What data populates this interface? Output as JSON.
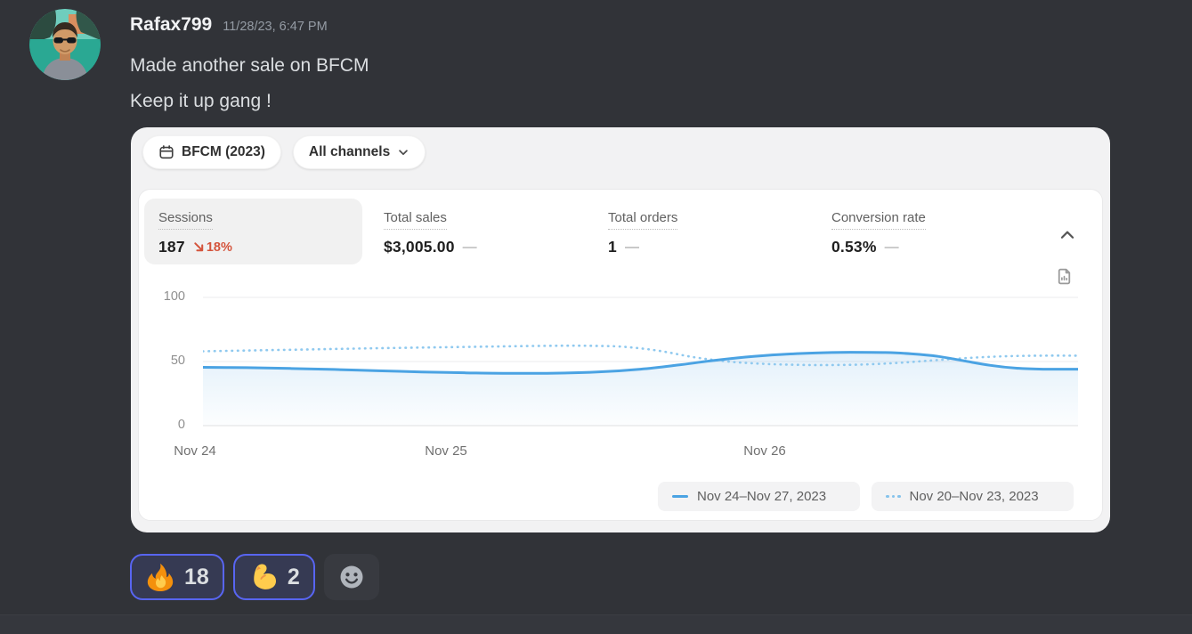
{
  "message": {
    "username": "Rafax799",
    "timestamp": "11/28/23, 6:47 PM",
    "lines": [
      "Made another sale on BFCM",
      "Keep it up gang !"
    ]
  },
  "embed": {
    "date_range_label": "BFCM (2023)",
    "channels_label": "All channels",
    "metrics": [
      {
        "label": "Sessions",
        "value": "187",
        "delta": "18%",
        "delta_direction": "down",
        "selected": true
      },
      {
        "label": "Total sales",
        "value": "$3,005.00",
        "comparison_dash": "—"
      },
      {
        "label": "Total orders",
        "value": "1",
        "comparison_dash": "—"
      },
      {
        "label": "Conversion rate",
        "value": "0.53%",
        "comparison_dash": "—"
      }
    ]
  },
  "chart_data": {
    "type": "line",
    "title": "Sessions",
    "xlabel": "",
    "ylabel": "",
    "ylim": [
      0,
      100
    ],
    "yticks": [
      0,
      50,
      100
    ],
    "xticks": [
      "Nov 24",
      "Nov 25",
      "Nov 26"
    ],
    "grid": true,
    "legend_position": "bottom-right",
    "series": [
      {
        "name": "Nov 24–Nov 27, 2023",
        "style": "solid",
        "color": "#4BA3E3",
        "points": [
          [
            0,
            45.5
          ],
          [
            0.05,
            45.2
          ],
          [
            0.1,
            44.6
          ],
          [
            0.15,
            43.8
          ],
          [
            0.2,
            42.8
          ],
          [
            0.25,
            41.9
          ],
          [
            0.3,
            41.2
          ],
          [
            0.35,
            40.8
          ],
          [
            0.4,
            40.9
          ],
          [
            0.45,
            41.8
          ],
          [
            0.5,
            44
          ],
          [
            0.54,
            47
          ],
          [
            0.58,
            50.5
          ],
          [
            0.62,
            53.5
          ],
          [
            0.66,
            55.5
          ],
          [
            0.7,
            56.7
          ],
          [
            0.74,
            57.2
          ],
          [
            0.78,
            57
          ],
          [
            0.81,
            56
          ],
          [
            0.84,
            54
          ],
          [
            0.87,
            50.5
          ],
          [
            0.9,
            47
          ],
          [
            0.93,
            44.8
          ],
          [
            0.96,
            44
          ],
          [
            1,
            44
          ]
        ]
      },
      {
        "name": "Nov 20–Nov 23, 2023",
        "style": "dotted",
        "color": "#8FC9EF",
        "points": [
          [
            0,
            58
          ],
          [
            0.05,
            58.6
          ],
          [
            0.1,
            59.2
          ],
          [
            0.15,
            59.8
          ],
          [
            0.2,
            60.4
          ],
          [
            0.25,
            60.9
          ],
          [
            0.3,
            61.4
          ],
          [
            0.35,
            61.9
          ],
          [
            0.4,
            62.3
          ],
          [
            0.44,
            62.3
          ],
          [
            0.48,
            61.5
          ],
          [
            0.52,
            58.5
          ],
          [
            0.56,
            53.5
          ],
          [
            0.6,
            50
          ],
          [
            0.64,
            48.2
          ],
          [
            0.68,
            47.4
          ],
          [
            0.72,
            47.3
          ],
          [
            0.76,
            47.8
          ],
          [
            0.8,
            49.2
          ],
          [
            0.84,
            51.2
          ],
          [
            0.88,
            53
          ],
          [
            0.92,
            54.2
          ],
          [
            0.96,
            54.6
          ],
          [
            1,
            54.6
          ]
        ]
      }
    ]
  },
  "reactions": [
    {
      "emoji": "fire",
      "count": "18",
      "reacted_by_me": true
    },
    {
      "emoji": "flexed-biceps",
      "count": "2",
      "reacted_by_me": true
    }
  ],
  "colors": {
    "chat_background": "#313338",
    "accent_blue_current": "#4BA3E3",
    "accent_blue_comparison": "#8FC9EF",
    "negative_delta_red": "#D4543C",
    "reaction_border": "#5865F2",
    "panel_background": "#F2F2F3"
  }
}
